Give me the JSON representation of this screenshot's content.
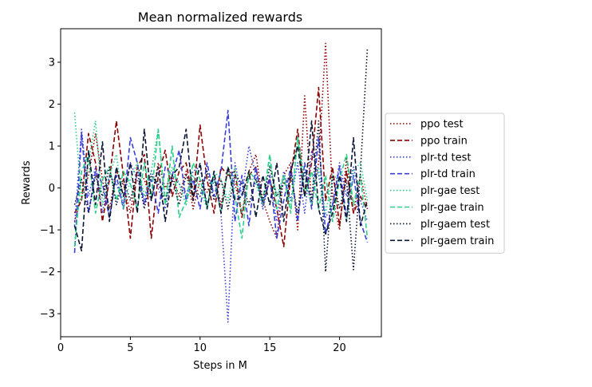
{
  "chart_data": {
    "type": "line",
    "title": "Mean normalized rewards",
    "xlabel": "Steps in M",
    "ylabel": "Rewards",
    "xlim": [
      0,
      23
    ],
    "ylim": [
      -3.55,
      3.8
    ],
    "xticks": [
      0,
      5,
      10,
      15,
      20
    ],
    "yticks": [
      -3,
      -2,
      -1,
      0,
      1,
      2,
      3
    ],
    "xtick_labels": [
      "0",
      "5",
      "10",
      "15",
      "20"
    ],
    "ytick_labels": [
      "−3",
      "−2",
      "−1",
      "0",
      "1",
      "2",
      "3"
    ],
    "grid": false,
    "legend_position": "outside-right",
    "series": [
      {
        "name": "ppo test",
        "color": "#8b0000",
        "dash": "dotted",
        "x": [
          1,
          1.5,
          2,
          2.5,
          3,
          3.5,
          4,
          4.5,
          5,
          5.5,
          6,
          6.5,
          7,
          7.5,
          8,
          8.5,
          9,
          9.5,
          10,
          10.5,
          11,
          11.5,
          12,
          12.5,
          13,
          13.5,
          14,
          14.5,
          15,
          15.5,
          16,
          16.5,
          17,
          17.5,
          18,
          18.5,
          19,
          19.5,
          20,
          20.5,
          21,
          21.5,
          22
        ],
        "y": [
          -0.8,
          -0.2,
          0.3,
          1.3,
          0.2,
          -0.5,
          0.4,
          0.1,
          -0.6,
          0.5,
          0.2,
          -0.3,
          0.6,
          0.0,
          0.3,
          -0.2,
          0.4,
          -0.5,
          0.2,
          -0.1,
          0.3,
          -0.4,
          0.5,
          0.1,
          -0.6,
          0.4,
          0.8,
          -0.3,
          -0.8,
          -1.2,
          0.3,
          0.6,
          -1.0,
          2.2,
          -0.4,
          0.6,
          3.45,
          -0.2,
          -1.0,
          0.7,
          -0.6,
          0.3,
          -0.5
        ]
      },
      {
        "name": "ppo train",
        "color": "#8b0000",
        "dash": "dashed",
        "x": [
          1,
          1.5,
          2,
          2.5,
          3,
          3.5,
          4,
          4.5,
          5,
          5.5,
          6,
          6.5,
          7,
          7.5,
          8,
          8.5,
          9,
          9.5,
          10,
          10.5,
          11,
          11.5,
          12,
          12.5,
          13,
          13.5,
          14,
          14.5,
          15,
          15.5,
          16,
          16.5,
          17,
          17.5,
          18,
          18.5,
          19,
          19.5,
          20,
          20.5,
          21,
          21.5,
          22
        ],
        "y": [
          -0.6,
          -0.3,
          1.3,
          0.6,
          -0.8,
          0.2,
          1.6,
          0.3,
          -1.2,
          0.5,
          0.8,
          -1.2,
          0.3,
          0.9,
          -0.2,
          0.4,
          0.6,
          -0.3,
          1.5,
          0.2,
          -0.6,
          0.5,
          0.3,
          0.4,
          -0.7,
          0.3,
          0.5,
          -0.4,
          0.2,
          -0.5,
          -1.4,
          0.3,
          1.4,
          -0.2,
          0.6,
          2.4,
          -0.3,
          0.5,
          -0.9,
          0.4,
          -0.6,
          -0.2,
          -0.5
        ]
      },
      {
        "name": "plr-td test",
        "color": "#3a3fd9",
        "dash": "dotted",
        "x": [
          1,
          1.5,
          2,
          2.5,
          3,
          3.5,
          4,
          4.5,
          5,
          5.5,
          6,
          6.5,
          7,
          7.5,
          8,
          8.5,
          9,
          9.5,
          10,
          10.5,
          11,
          11.5,
          12,
          12.5,
          13,
          13.5,
          14,
          14.5,
          15,
          15.5,
          16,
          16.5,
          17,
          17.5,
          18,
          18.5,
          19,
          19.5,
          20,
          20.5,
          21,
          21.5,
          22
        ],
        "y": [
          -0.9,
          1.4,
          -0.2,
          0.5,
          -0.6,
          0.3,
          0.1,
          -0.4,
          0.6,
          0.2,
          -0.3,
          0.4,
          0.0,
          -0.5,
          0.3,
          0.1,
          -0.2,
          0.4,
          0.5,
          -0.4,
          0.2,
          -0.6,
          -3.2,
          0.6,
          -0.2,
          1.0,
          0.3,
          -0.5,
          0.2,
          -0.8,
          0.4,
          -0.3,
          0.6,
          -0.6,
          0.9,
          0.3,
          -0.7,
          -0.4,
          0.6,
          -0.2,
          0.5,
          -0.3,
          -0.8
        ]
      },
      {
        "name": "plr-td train",
        "color": "#3a3fd9",
        "dash": "dashed",
        "x": [
          1,
          1.5,
          2,
          2.5,
          3,
          3.5,
          4,
          4.5,
          5,
          5.5,
          6,
          6.5,
          7,
          7.5,
          8,
          8.5,
          9,
          9.5,
          10,
          10.5,
          11,
          11.5,
          12,
          12.5,
          13,
          13.5,
          14,
          14.5,
          15,
          15.5,
          16,
          16.5,
          17,
          17.5,
          18,
          18.5,
          19,
          19.5,
          20,
          20.5,
          21,
          21.5,
          22
        ],
        "y": [
          -1.55,
          1.3,
          -0.6,
          0.4,
          0.1,
          -0.7,
          0.3,
          -0.5,
          1.2,
          0.6,
          -0.4,
          0.2,
          -0.6,
          0.5,
          0.3,
          0.9,
          -0.3,
          0.2,
          -0.5,
          0.6,
          -0.2,
          0.4,
          1.85,
          -0.8,
          0.3,
          -0.9,
          0.5,
          -0.4,
          0.3,
          -1.2,
          -0.3,
          0.5,
          -0.8,
          0.6,
          -0.5,
          1.2,
          -1.1,
          -0.4,
          0.5,
          -0.7,
          0.3,
          -0.8,
          -1.3
        ]
      },
      {
        "name": "plr-gae test",
        "color": "#2bd08a",
        "dash": "dotted",
        "x": [
          1,
          1.5,
          2,
          2.5,
          3,
          3.5,
          4,
          4.5,
          5,
          5.5,
          6,
          6.5,
          7,
          7.5,
          8,
          8.5,
          9,
          9.5,
          10,
          10.5,
          11,
          11.5,
          12,
          12.5,
          13,
          13.5,
          14,
          14.5,
          15,
          15.5,
          16,
          16.5,
          17,
          17.5,
          18,
          18.5,
          19,
          19.5,
          20,
          20.5,
          21,
          21.5,
          22
        ],
        "y": [
          1.8,
          -0.3,
          0.6,
          1.6,
          -0.4,
          0.3,
          0.8,
          -0.5,
          0.2,
          0.6,
          -0.2,
          0.4,
          1.4,
          -0.3,
          0.5,
          0.1,
          -0.4,
          0.3,
          0.0,
          -0.5,
          0.4,
          0.2,
          -0.3,
          0.5,
          -0.6,
          0.3,
          0.1,
          -0.4,
          0.6,
          -0.2,
          0.3,
          -0.5,
          1.2,
          0.2,
          -0.4,
          0.5,
          -0.6,
          0.3,
          0.2,
          -0.8,
          0.4,
          0.6,
          -0.3
        ]
      },
      {
        "name": "plr-gae train",
        "color": "#2bd08a",
        "dash": "dashed",
        "x": [
          1,
          1.5,
          2,
          2.5,
          3,
          3.5,
          4,
          4.5,
          5,
          5.5,
          6,
          6.5,
          7,
          7.5,
          8,
          8.5,
          9,
          9.5,
          10,
          10.5,
          11,
          11.5,
          12,
          12.5,
          13,
          13.5,
          14,
          14.5,
          15,
          15.5,
          16,
          16.5,
          17,
          17.5,
          18,
          18.5,
          19,
          19.5,
          20,
          20.5,
          21,
          21.5,
          22
        ],
        "y": [
          -1.4,
          0.4,
          0.8,
          -0.6,
          0.2,
          0.5,
          -0.3,
          0.4,
          0.1,
          -0.5,
          0.6,
          -0.2,
          1.4,
          -0.4,
          1.0,
          -0.7,
          -0.3,
          0.6,
          0.2,
          -0.4,
          0.3,
          -0.6,
          0.5,
          -0.2,
          -1.2,
          0.4,
          0.2,
          -0.3,
          0.8,
          -0.5,
          0.3,
          -0.6,
          1.2,
          -0.2,
          0.4,
          -0.5,
          0.3,
          -0.8,
          0.2,
          0.8,
          -0.4,
          0.3,
          -1.2
        ]
      },
      {
        "name": "plr-gaem test",
        "color": "#0a1433",
        "dash": "dotted",
        "x": [
          1,
          1.5,
          2,
          2.5,
          3,
          3.5,
          4,
          4.5,
          5,
          5.5,
          6,
          6.5,
          7,
          7.5,
          8,
          8.5,
          9,
          9.5,
          10,
          10.5,
          11,
          11.5,
          12,
          12.5,
          13,
          13.5,
          14,
          14.5,
          15,
          15.5,
          16,
          16.5,
          17,
          17.5,
          18,
          18.5,
          19,
          19.5,
          20,
          20.5,
          21,
          21.5,
          22
        ],
        "y": [
          -0.4,
          0.2,
          -0.6,
          0.3,
          -0.2,
          0.5,
          -0.4,
          0.2,
          -0.3,
          0.4,
          -0.5,
          0.3,
          0.1,
          -0.3,
          0.2,
          -0.4,
          0.3,
          0.0,
          -0.2,
          0.4,
          -0.3,
          0.2,
          -0.5,
          0.3,
          0.1,
          -0.4,
          0.2,
          -0.3,
          0.5,
          -0.2,
          0.1,
          0.3,
          -0.6,
          0.4,
          -0.3,
          1.6,
          -2.0,
          0.3,
          -0.5,
          0.2,
          -1.95,
          0.4,
          3.35
        ]
      },
      {
        "name": "plr-gaem train",
        "color": "#0a1433",
        "dash": "dashed",
        "x": [
          1,
          1.5,
          2,
          2.5,
          3,
          3.5,
          4,
          4.5,
          5,
          5.5,
          6,
          6.5,
          7,
          7.5,
          8,
          8.5,
          9,
          9.5,
          10,
          10.5,
          11,
          11.5,
          12,
          12.5,
          13,
          13.5,
          14,
          14.5,
          15,
          15.5,
          16,
          16.5,
          17,
          17.5,
          18,
          18.5,
          19,
          19.5,
          20,
          20.5,
          21,
          21.5,
          22
        ],
        "y": [
          -0.9,
          -1.5,
          0.9,
          -0.4,
          1.1,
          -0.8,
          0.5,
          -0.2,
          0.6,
          -0.6,
          1.4,
          -0.3,
          0.5,
          -0.8,
          0.3,
          0.5,
          1.4,
          -0.3,
          0.6,
          -0.5,
          0.4,
          -0.6,
          0.5,
          -0.3,
          -0.2,
          0.4,
          -0.7,
          0.3,
          -0.4,
          0.6,
          -0.8,
          0.4,
          1.0,
          -0.2,
          1.6,
          -0.5,
          -1.1,
          -0.6,
          0.3,
          -0.8,
          1.2,
          -0.9,
          -0.3
        ]
      }
    ]
  }
}
